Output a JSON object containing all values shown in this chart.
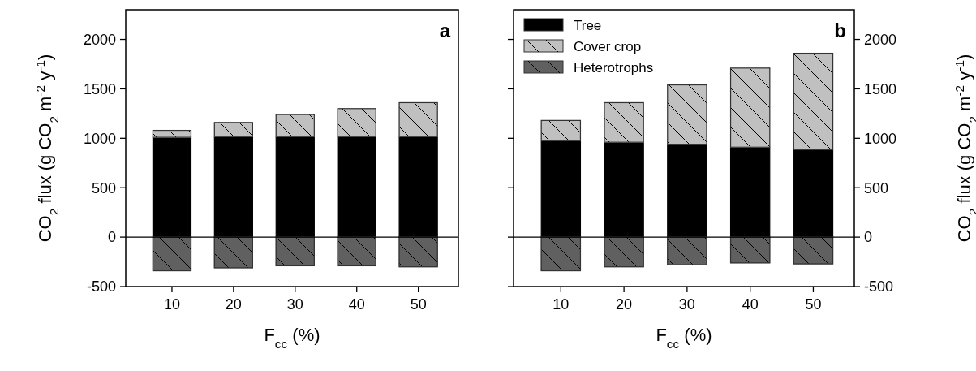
{
  "chart_data": [
    {
      "type": "bar",
      "title": "a",
      "stacked": true,
      "categories": [
        "10",
        "20",
        "30",
        "40",
        "50"
      ],
      "xlabel": "F$_{cc}$ (%)",
      "ylabel": "CO$_{2}$ flux (g CO$_{2}$ m$^{-2}$ y$^{-1}$)",
      "ylim": [
        -500,
        2300
      ],
      "yticks": [
        -500,
        0,
        500,
        1000,
        1500,
        2000
      ],
      "legend": false,
      "ref_lines": [
        {
          "axis": "y",
          "value": 0
        }
      ],
      "series": [
        {
          "color": "#000000",
          "values": [
            1010,
            1020,
            1020,
            1020,
            1020
          ]
        },
        {
          "color": "#c0c0c0",
          "values": [
            70,
            140,
            220,
            280,
            340
          ]
        },
        {
          "color": "#606060",
          "values": [
            -340,
            -310,
            -290,
            -290,
            -300
          ]
        }
      ]
    },
    {
      "type": "bar",
      "title": "b",
      "stacked": true,
      "categories": [
        "10",
        "20",
        "30",
        "40",
        "50"
      ],
      "xlabel": "F$_{cc}$ (%)",
      "ylabel": "CO$_{2}$ flux (g CO$_{2}$ m$^{-2}$ y$^{-1}$)",
      "ylim": [
        -500,
        2300
      ],
      "yticks": [
        -500,
        0,
        500,
        1000,
        1500,
        2000
      ],
      "legend": "top left",
      "ref_lines": [
        {
          "axis": "y",
          "value": 0
        }
      ],
      "series": [
        {
          "name": "Tree",
          "color": "#000000",
          "values": [
            980,
            960,
            940,
            910,
            890
          ]
        },
        {
          "name": "Cover crop",
          "color": "#c0c0c0",
          "values": [
            200,
            400,
            600,
            800,
            970
          ]
        },
        {
          "name": "Heterotrophs",
          "color": "#606060",
          "values": [
            -340,
            -300,
            -280,
            -260,
            -270
          ]
        }
      ]
    }
  ]
}
